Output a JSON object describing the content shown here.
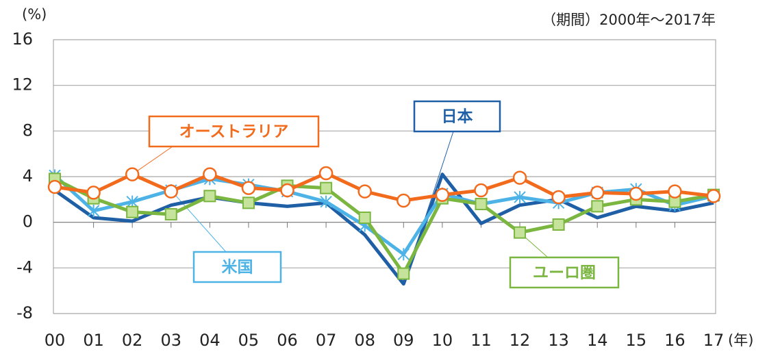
{
  "chart_data": {
    "type": "line",
    "y_unit": "(%)",
    "period_note": "（期間）2000年～2017年",
    "x_unit": "(年)",
    "categories": [
      "00",
      "01",
      "02",
      "03",
      "04",
      "05",
      "06",
      "07",
      "08",
      "09",
      "10",
      "11",
      "12",
      "13",
      "14",
      "15",
      "16",
      "17"
    ],
    "series": [
      {
        "name": "日本",
        "color": "#1f5fa6",
        "marker": "none",
        "values": [
          2.8,
          0.4,
          0.1,
          1.5,
          2.2,
          1.7,
          1.4,
          1.7,
          -1.1,
          -5.4,
          4.2,
          -0.1,
          1.5,
          2.0,
          0.4,
          1.4,
          1.0,
          1.7
        ]
      },
      {
        "name": "米国",
        "color": "#4db3e6",
        "marker": "asterisk",
        "values": [
          4.1,
          1.0,
          1.8,
          2.8,
          3.8,
          3.3,
          2.7,
          1.8,
          -0.3,
          -2.8,
          2.5,
          1.6,
          2.2,
          1.7,
          2.6,
          2.9,
          1.5,
          2.3
        ]
      },
      {
        "name": "ユーロ圏",
        "color": "#7ab640",
        "marker": "square",
        "values": [
          3.8,
          2.1,
          0.9,
          0.7,
          2.3,
          1.7,
          3.2,
          3.0,
          0.4,
          -4.5,
          2.1,
          1.6,
          -0.9,
          -0.2,
          1.4,
          2.0,
          1.8,
          2.4
        ]
      },
      {
        "name": "オーストラリア",
        "color": "#f26b1d",
        "marker": "circle",
        "values": [
          3.1,
          2.6,
          4.2,
          2.7,
          4.2,
          3.0,
          2.8,
          4.3,
          2.7,
          1.9,
          2.4,
          2.8,
          3.9,
          2.2,
          2.6,
          2.5,
          2.7,
          2.3
        ]
      }
    ],
    "ylim": [
      -8,
      16
    ],
    "yticks": [
      -8,
      -4,
      0,
      4,
      8,
      12,
      16
    ],
    "grid": true
  }
}
